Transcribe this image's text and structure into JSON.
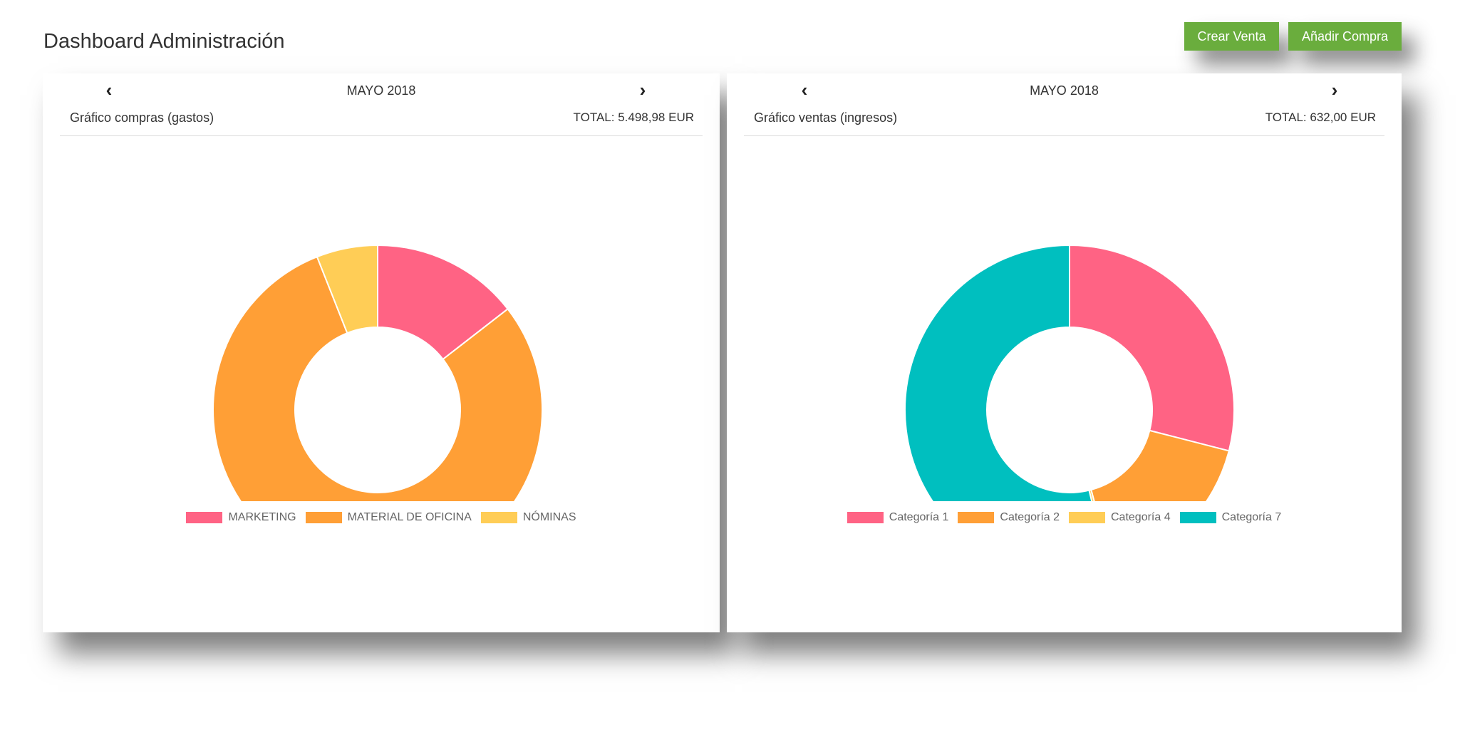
{
  "page": {
    "title": "Dashboard Administración"
  },
  "actions": {
    "crear_venta": "Crear Venta",
    "anadir_compra": "Añadir Compra"
  },
  "compras": {
    "prev_icon": "chevron-left-icon",
    "next_icon": "chevron-right-icon",
    "month": "MAYO 2018",
    "subtitle": "Gráfico compras (gastos)",
    "total": "TOTAL: 5.498,98 EUR"
  },
  "ventas": {
    "prev_icon": "chevron-left-icon",
    "next_icon": "chevron-right-icon",
    "month": "MAYO 2018",
    "subtitle": "Gráfico ventas (ingresos)",
    "total": "TOTAL: 632,00 EUR"
  },
  "chart_data": [
    {
      "type": "pie",
      "variant": "doughnut",
      "categories": [
        "MARKETING",
        "MATERIAL DE OFICINA",
        "NÓMINAS"
      ],
      "values": [
        14.5,
        79.5,
        6.0
      ],
      "colors": [
        "#ff6384",
        "#ff9f36",
        "#ffcd56"
      ]
    },
    {
      "type": "pie",
      "variant": "doughnut",
      "categories": [
        "Categoría 1",
        "Categoría 2",
        "Categoría 4",
        "Categoría 7"
      ],
      "values": [
        29.0,
        16.8,
        0.4,
        53.8
      ],
      "colors": [
        "#ff6384",
        "#ff9f36",
        "#ffcd56",
        "#00bfbf"
      ]
    }
  ]
}
